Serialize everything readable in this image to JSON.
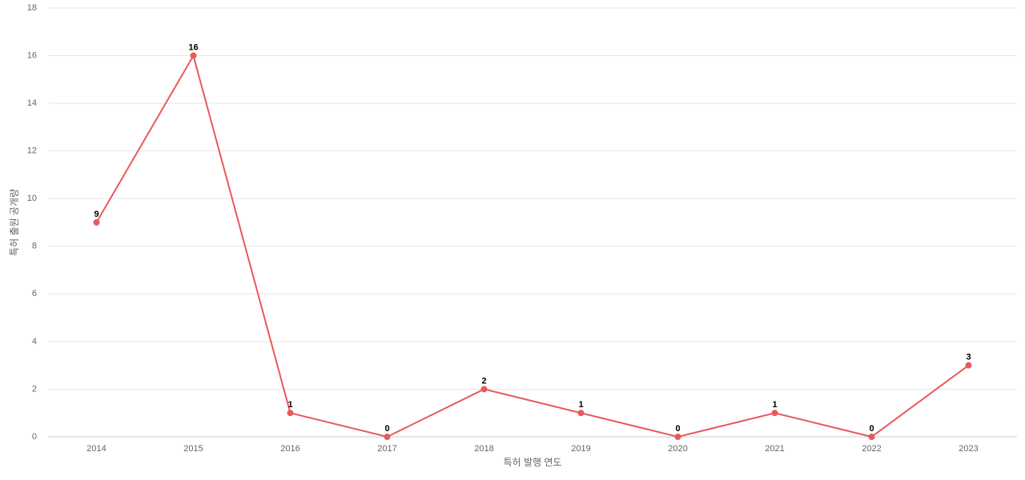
{
  "chart_data": {
    "type": "line",
    "x_label": "특허 발행 연도",
    "y_label": "특허 출원 공개량",
    "categories": [
      "2014",
      "2015",
      "2016",
      "2017",
      "2018",
      "2019",
      "2020",
      "2021",
      "2022",
      "2023"
    ],
    "values": [
      9,
      16,
      1,
      0,
      2,
      1,
      0,
      1,
      0,
      3
    ],
    "color": "#e8595b",
    "ylim": [
      0,
      18
    ],
    "yticks": [
      0,
      2,
      4,
      6,
      8,
      10,
      12,
      14,
      16,
      18
    ],
    "grid": true,
    "data_labels": true
  }
}
